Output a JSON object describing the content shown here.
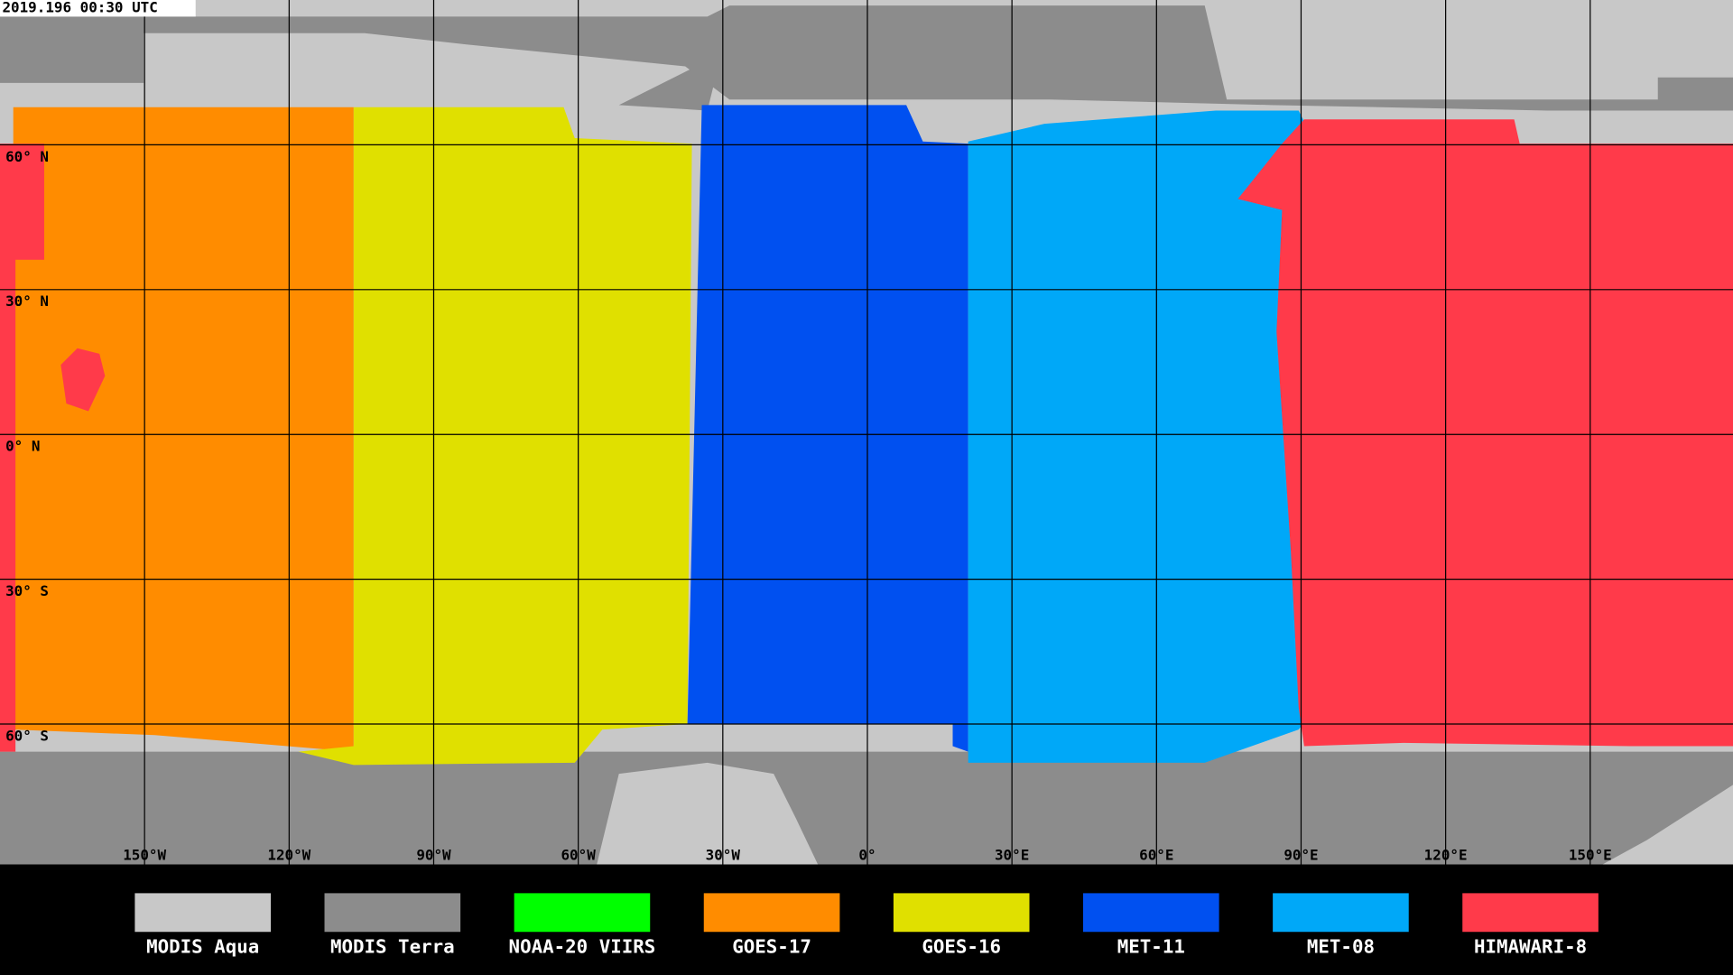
{
  "timestamp": "2019.196 00:30 UTC",
  "map": {
    "lat_labels": [
      "60° N",
      "30° N",
      "0° N",
      "30° S",
      "60° S"
    ],
    "lon_labels": [
      "150°W",
      "120°W",
      "90°W",
      "60°W",
      "30°W",
      "0°",
      "30°E",
      "60°E",
      "90°E",
      "120°E",
      "150°E"
    ]
  },
  "legend": [
    {
      "name": "MODIS Aqua",
      "color": "#c8c8c8"
    },
    {
      "name": "MODIS Terra",
      "color": "#8c8c8c"
    },
    {
      "name": "NOAA-20 VIIRS",
      "color": "#00ff00"
    },
    {
      "name": "GOES-17",
      "color": "#ff8c00"
    },
    {
      "name": "GOES-16",
      "color": "#e0e000"
    },
    {
      "name": "MET-11",
      "color": "#0050f0"
    },
    {
      "name": "MET-08",
      "color": "#00a8f8"
    },
    {
      "name": "HIMAWARI-8",
      "color": "#ff3a4a"
    }
  ]
}
